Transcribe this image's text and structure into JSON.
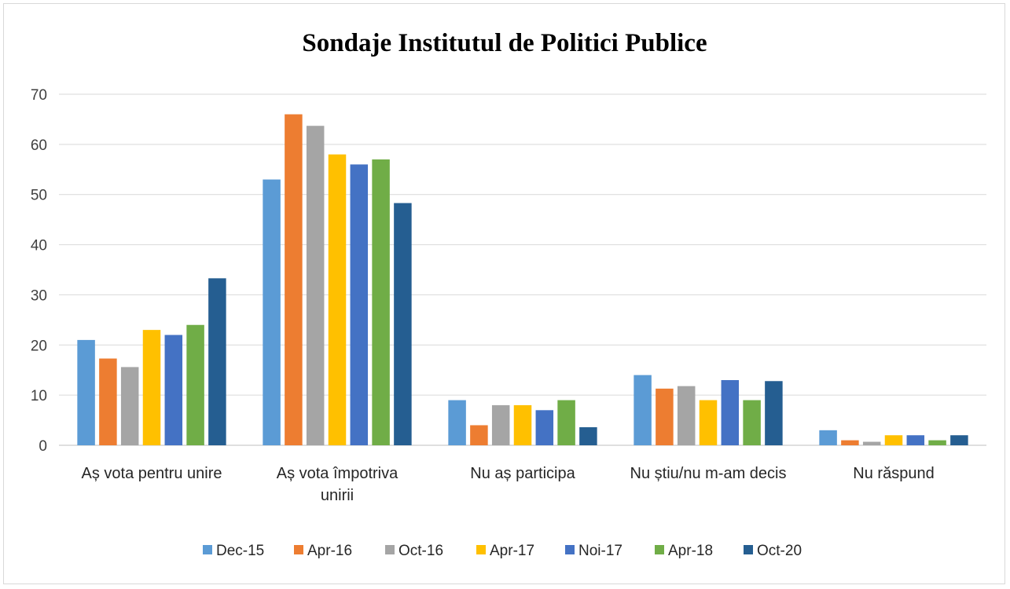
{
  "chart_data": {
    "type": "bar",
    "title": "Sondaje Institutul de Politici Publice",
    "xlabel": "",
    "ylabel": "",
    "ylim": [
      0,
      70
    ],
    "yticks": [
      0,
      10,
      20,
      30,
      40,
      50,
      60,
      70
    ],
    "grid": true,
    "legend_position": "bottom",
    "categories": [
      [
        "Aș vota pentru unire"
      ],
      [
        "Aș vota împotriva",
        "unirii"
      ],
      [
        "Nu aș participa"
      ],
      [
        "Nu știu/nu m-am decis"
      ],
      [
        "Nu răspund"
      ]
    ],
    "series": [
      {
        "name": "Dec-15",
        "color": "#5B9BD5",
        "values": [
          21,
          53,
          9,
          14,
          3
        ]
      },
      {
        "name": "Apr-16",
        "color": "#ED7D31",
        "values": [
          17.3,
          66,
          4,
          11.3,
          1
        ]
      },
      {
        "name": "Oct-16",
        "color": "#A5A5A5",
        "values": [
          15.6,
          63.7,
          8,
          11.8,
          0.7
        ]
      },
      {
        "name": "Apr-17",
        "color": "#FFC000",
        "values": [
          23,
          58,
          8,
          9,
          2
        ]
      },
      {
        "name": "Noi-17",
        "color": "#4472C4",
        "values": [
          22,
          56,
          7,
          13,
          2
        ]
      },
      {
        "name": "Apr-18",
        "color": "#70AD47",
        "values": [
          24,
          57,
          9,
          9,
          1
        ]
      },
      {
        "name": "Oct-20",
        "color": "#255E91",
        "values": [
          33.3,
          48.3,
          3.6,
          12.8,
          2
        ]
      }
    ]
  }
}
